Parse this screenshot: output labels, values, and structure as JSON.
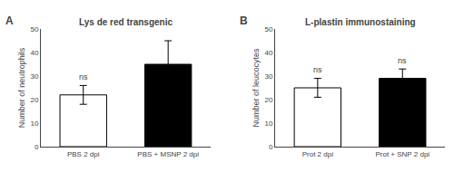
{
  "chart_data": [
    {
      "type": "bar",
      "title": "Lys de red transgenic",
      "ylabel": "Number of neutrophils",
      "categories": [
        "PBS 2 dpi",
        "PBS + MSNP 2 dpi"
      ],
      "values": [
        22,
        35
      ],
      "errors": [
        4,
        10
      ],
      "colors": [
        "white",
        "black"
      ],
      "ylim": [
        0,
        50
      ],
      "yticks": [
        0,
        10,
        20,
        30,
        40,
        50
      ],
      "grid": false,
      "annotations": [
        {
          "x": "PBS 2 dpi",
          "y": 27,
          "text": "ns"
        }
      ],
      "label": "A"
    },
    {
      "type": "bar",
      "title": "L-plastin immunostaining",
      "ylabel": "Number of leucocytes",
      "categories": [
        "Prot 2 dpi",
        "Prot + SNP 2 dpi"
      ],
      "values": [
        25,
        29
      ],
      "errors": [
        4,
        4
      ],
      "colors": [
        "white",
        "black"
      ],
      "ylim": [
        0,
        50
      ],
      "yticks": [
        0,
        10,
        20,
        30,
        40,
        50
      ],
      "grid": false,
      "annotations": [
        {
          "x": "Prot 2 dpi",
          "y": 30,
          "text": "ns"
        },
        {
          "x": "Prot + SNP 2 dpi",
          "y": 34,
          "text": "ns"
        }
      ],
      "label": "B"
    }
  ]
}
